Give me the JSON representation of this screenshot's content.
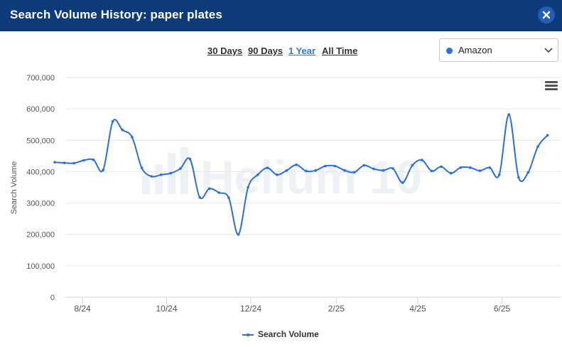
{
  "header": {
    "title": "Search Volume History: paper plates"
  },
  "ranges": [
    {
      "label": "30 Days",
      "active": false
    },
    {
      "label": "90 Days",
      "active": false
    },
    {
      "label": "1 Year",
      "active": true
    },
    {
      "label": "All Time",
      "active": false
    }
  ],
  "marketplace": {
    "selected": "Amazon",
    "dot_color": "#2a6fdb"
  },
  "watermark": "Helium 10",
  "colors": {
    "header_bg": "#0d3b7a",
    "series": "#2a6fdb",
    "active_link": "#2b7ad6"
  },
  "chart_data": {
    "type": "line",
    "title": "",
    "xlabel": "",
    "ylabel": "Search Volume",
    "ylim": [
      0,
      700000
    ],
    "yticks": [
      0,
      100000,
      200000,
      300000,
      400000,
      500000,
      600000,
      700000
    ],
    "ytick_labels": [
      "0",
      "100,000",
      "200,000",
      "300,000",
      "400,000",
      "500,000",
      "600,000",
      "700,000"
    ],
    "xtick_labels": [
      "8/24",
      "10/24",
      "12/24",
      "2/25",
      "4/25",
      "6/25"
    ],
    "xtick_dates": [
      "2024-08-01",
      "2024-10-01",
      "2024-12-01",
      "2025-02-01",
      "2025-04-01",
      "2025-06-01"
    ],
    "grid": true,
    "legend": "bottom-center",
    "series": [
      {
        "name": "Search Volume",
        "points": [
          [
            "2024-07-12",
            430000
          ],
          [
            "2024-07-19",
            428000
          ],
          [
            "2024-07-26",
            427000
          ],
          [
            "2024-08-02",
            436000
          ],
          [
            "2024-08-09",
            438000
          ],
          [
            "2024-08-16",
            405000
          ],
          [
            "2024-08-23",
            560000
          ],
          [
            "2024-08-30",
            533000
          ],
          [
            "2024-09-06",
            510000
          ],
          [
            "2024-09-13",
            412000
          ],
          [
            "2024-09-20",
            385000
          ],
          [
            "2024-09-27",
            390000
          ],
          [
            "2024-10-04",
            395000
          ],
          [
            "2024-10-11",
            410000
          ],
          [
            "2024-10-18",
            440000
          ],
          [
            "2024-10-25",
            318000
          ],
          [
            "2024-11-01",
            346000
          ],
          [
            "2024-11-08",
            333000
          ],
          [
            "2024-11-15",
            317000
          ],
          [
            "2024-11-22",
            200000
          ],
          [
            "2024-11-29",
            350000
          ],
          [
            "2024-12-06",
            390000
          ],
          [
            "2024-12-13",
            412000
          ],
          [
            "2024-12-20",
            390000
          ],
          [
            "2024-12-27",
            404000
          ],
          [
            "2025-01-03",
            422000
          ],
          [
            "2025-01-10",
            402000
          ],
          [
            "2025-01-17",
            404000
          ],
          [
            "2025-01-24",
            418000
          ],
          [
            "2025-01-31",
            418000
          ],
          [
            "2025-02-07",
            404000
          ],
          [
            "2025-02-14",
            398000
          ],
          [
            "2025-02-21",
            420000
          ],
          [
            "2025-02-28",
            409000
          ],
          [
            "2025-03-07",
            404000
          ],
          [
            "2025-03-14",
            410000
          ],
          [
            "2025-03-21",
            365000
          ],
          [
            "2025-03-28",
            420000
          ],
          [
            "2025-04-04",
            437000
          ],
          [
            "2025-04-11",
            402000
          ],
          [
            "2025-04-18",
            416000
          ],
          [
            "2025-04-25",
            395000
          ],
          [
            "2025-05-02",
            413000
          ],
          [
            "2025-05-09",
            413000
          ],
          [
            "2025-05-16",
            403000
          ],
          [
            "2025-05-23",
            413000
          ],
          [
            "2025-05-30",
            390000
          ],
          [
            "2025-06-06",
            582000
          ],
          [
            "2025-06-13",
            382000
          ],
          [
            "2025-06-20",
            398000
          ],
          [
            "2025-06-27",
            480000
          ],
          [
            "2025-07-04",
            516000
          ]
        ]
      }
    ]
  }
}
